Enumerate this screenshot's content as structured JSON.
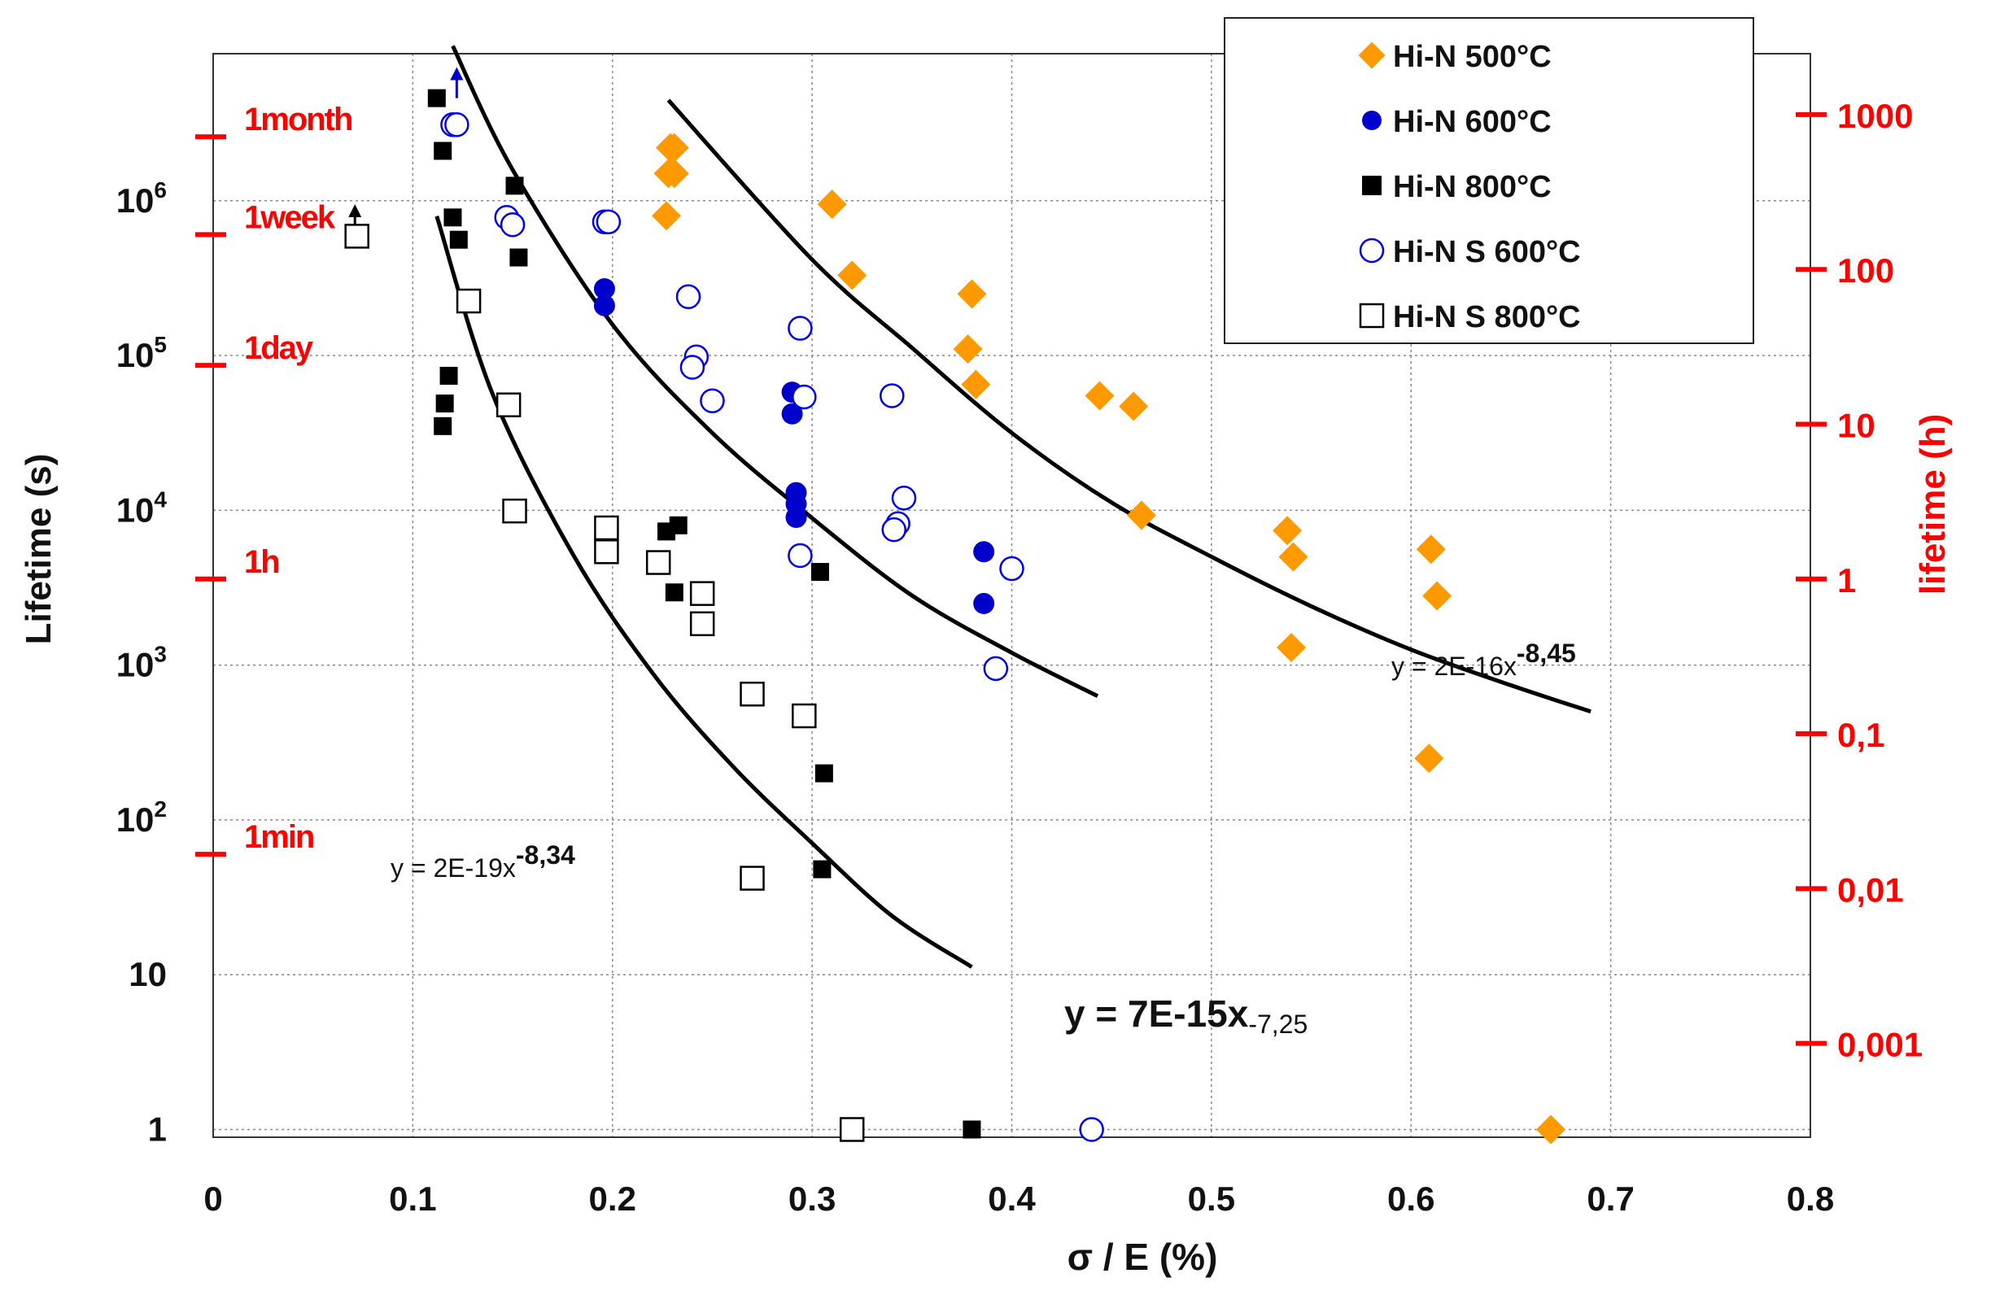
{
  "chart_data": {
    "type": "scatter",
    "title": "",
    "xlabel": "σ / E (%)",
    "ylabel": "Lifetime (s)",
    "y2label": "lifetime (h)",
    "xlim": [
      0,
      0.8
    ],
    "ylim_log10": [
      -0.05,
      6.95
    ],
    "grid": true,
    "legend_position": "top-right",
    "x_ticks": [
      {
        "value": 0,
        "label": "0"
      },
      {
        "value": 0.1,
        "label": "0.1"
      },
      {
        "value": 0.2,
        "label": "0.2"
      },
      {
        "value": 0.3,
        "label": "0.3"
      },
      {
        "value": 0.4,
        "label": "0.4"
      },
      {
        "value": 0.5,
        "label": "0.5"
      },
      {
        "value": 0.6,
        "label": "0.6"
      },
      {
        "value": 0.7,
        "label": "0.7"
      },
      {
        "value": 0.8,
        "label": "0.8"
      }
    ],
    "y_ticks": [
      {
        "log": 0,
        "mant": "1",
        "exp": ""
      },
      {
        "log": 1,
        "mant": "10",
        "exp": ""
      },
      {
        "log": 2,
        "mant": "10",
        "exp": "2"
      },
      {
        "log": 3,
        "mant": "10",
        "exp": "3"
      },
      {
        "log": 4,
        "mant": "10",
        "exp": "4"
      },
      {
        "log": 5,
        "mant": "10",
        "exp": "5"
      },
      {
        "log": 6,
        "mant": "10",
        "exp": "6"
      }
    ],
    "time_marks": [
      {
        "label": "1min",
        "seconds": 60
      },
      {
        "label": "1h",
        "seconds": 3600
      },
      {
        "label": "1day",
        "seconds": 86400
      },
      {
        "label": "1week",
        "seconds": 604800
      },
      {
        "label": "1month",
        "seconds": 2592000
      }
    ],
    "y2_ticks": [
      {
        "hours": 0.001,
        "label": "0,001"
      },
      {
        "hours": 0.01,
        "label": "0,01"
      },
      {
        "hours": 0.1,
        "label": "0,1"
      },
      {
        "hours": 1,
        "label": "1"
      },
      {
        "hours": 10,
        "label": "10"
      },
      {
        "hours": 100,
        "label": "100"
      },
      {
        "hours": 1000,
        "label": "1000"
      }
    ],
    "series": [
      {
        "name": "Hi-N 500°C",
        "marker": "diamond",
        "color": "#ff9900",
        "filled": true,
        "points": [
          [
            0.229,
            2200000
          ],
          [
            0.231,
            2200000
          ],
          [
            0.228,
            1500000
          ],
          [
            0.231,
            1500000
          ],
          [
            0.227,
            800000
          ],
          [
            0.31,
            950000
          ],
          [
            0.32,
            330000
          ],
          [
            0.38,
            250000
          ],
          [
            0.378,
            110000
          ],
          [
            0.382,
            65000
          ],
          [
            0.444,
            55000
          ],
          [
            0.461,
            47000
          ],
          [
            0.465,
            9300
          ],
          [
            0.538,
            7400
          ],
          [
            0.541,
            5000
          ],
          [
            0.61,
            5600
          ],
          [
            0.613,
            2800
          ],
          [
            0.54,
            1300
          ],
          [
            0.609,
            250
          ],
          [
            0.67,
            1
          ]
        ]
      },
      {
        "name": "Hi-N 600°C",
        "marker": "circle",
        "color": "#0000cc",
        "filled": true,
        "points": [
          [
            0.196,
            270000
          ],
          [
            0.196,
            210000
          ],
          [
            0.29,
            58000
          ],
          [
            0.29,
            42000
          ],
          [
            0.292,
            13000
          ],
          [
            0.292,
            11000
          ],
          [
            0.292,
            9000
          ],
          [
            0.386,
            5400
          ],
          [
            0.386,
            2500
          ]
        ]
      },
      {
        "name": "Hi-N 800°C",
        "marker": "square",
        "color": "#000000",
        "filled": true,
        "points": [
          [
            0.112,
            4600000
          ],
          [
            0.115,
            2100000
          ],
          [
            0.151,
            1250000
          ],
          [
            0.12,
            780000
          ],
          [
            0.123,
            560000
          ],
          [
            0.153,
            430000
          ],
          [
            0.118,
            74000
          ],
          [
            0.116,
            49000
          ],
          [
            0.115,
            35000
          ],
          [
            0.151,
            9900
          ],
          [
            0.233,
            8000
          ],
          [
            0.227,
            7300
          ],
          [
            0.304,
            4000
          ],
          [
            0.231,
            2950
          ],
          [
            0.306,
            200
          ],
          [
            0.305,
            48
          ],
          [
            0.38,
            1
          ]
        ]
      },
      {
        "name": "Hi-N S 600°C",
        "marker": "circle",
        "color": "#0000ee",
        "filled": false,
        "points": [
          [
            0.12,
            3100000
          ],
          [
            0.122,
            3100000
          ],
          [
            0.147,
            780000
          ],
          [
            0.15,
            700000
          ],
          [
            0.196,
            730000
          ],
          [
            0.198,
            730000
          ],
          [
            0.238,
            240000
          ],
          [
            0.294,
            150000
          ],
          [
            0.242,
            98000
          ],
          [
            0.24,
            84000
          ],
          [
            0.25,
            51000
          ],
          [
            0.296,
            54000
          ],
          [
            0.34,
            55000
          ],
          [
            0.346,
            12000
          ],
          [
            0.343,
            8200
          ],
          [
            0.341,
            7500
          ],
          [
            0.294,
            5100
          ],
          [
            0.4,
            4200
          ],
          [
            0.392,
            950
          ],
          [
            0.44,
            1
          ]
        ]
      },
      {
        "name": "Hi-N S 800°C",
        "marker": "square",
        "color": "#000000",
        "filled": false,
        "points": [
          [
            0.072,
            590000
          ],
          [
            0.128,
            225000
          ],
          [
            0.148,
            48000
          ],
          [
            0.151,
            9900
          ],
          [
            0.197,
            7700
          ],
          [
            0.197,
            5400
          ],
          [
            0.223,
            4600
          ],
          [
            0.245,
            2900
          ],
          [
            0.245,
            1850
          ],
          [
            0.27,
            650
          ],
          [
            0.296,
            470
          ],
          [
            0.27,
            42
          ],
          [
            0.32,
            1
          ]
        ]
      }
    ],
    "fits": [
      {
        "label": "y = 2E-19x",
        "exponent": "-8,34",
        "color": "#000000",
        "x_range": [
          0.112,
          0.38
        ],
        "log_points": [
          [
            0.112,
            5.9
          ],
          [
            0.14,
            4.75
          ],
          [
            0.18,
            3.72
          ],
          [
            0.22,
            2.95
          ],
          [
            0.26,
            2.35
          ],
          [
            0.3,
            1.85
          ],
          [
            0.34,
            1.38
          ],
          [
            0.38,
            1.05
          ]
        ]
      },
      {
        "label": "y = 7E-15x",
        "exponent": "-7,25",
        "color": "#000000",
        "x_range": [
          0.12,
          0.443
        ],
        "log_points": [
          [
            0.12,
            7.0
          ],
          [
            0.15,
            6.2
          ],
          [
            0.2,
            5.2
          ],
          [
            0.25,
            4.5
          ],
          [
            0.3,
            3.95
          ],
          [
            0.35,
            3.45
          ],
          [
            0.4,
            3.08
          ],
          [
            0.443,
            2.8
          ]
        ]
      },
      {
        "label": "y = 2E-16x",
        "exponent": "-8,45",
        "color": "#000000",
        "x_range": [
          0.228,
          0.69
        ],
        "log_points": [
          [
            0.228,
            6.65
          ],
          [
            0.3,
            5.62
          ],
          [
            0.35,
            5.05
          ],
          [
            0.4,
            4.5
          ],
          [
            0.45,
            4.05
          ],
          [
            0.5,
            3.7
          ],
          [
            0.55,
            3.38
          ],
          [
            0.6,
            3.1
          ],
          [
            0.65,
            2.87
          ],
          [
            0.69,
            2.7
          ]
        ]
      }
    ],
    "arrows": [
      {
        "x": 0.122,
        "from": 4600000,
        "to": 7300000,
        "color": "#0000cc"
      },
      {
        "x": 0.071,
        "from": 650000,
        "to": 950000,
        "color": "#000000"
      }
    ]
  }
}
